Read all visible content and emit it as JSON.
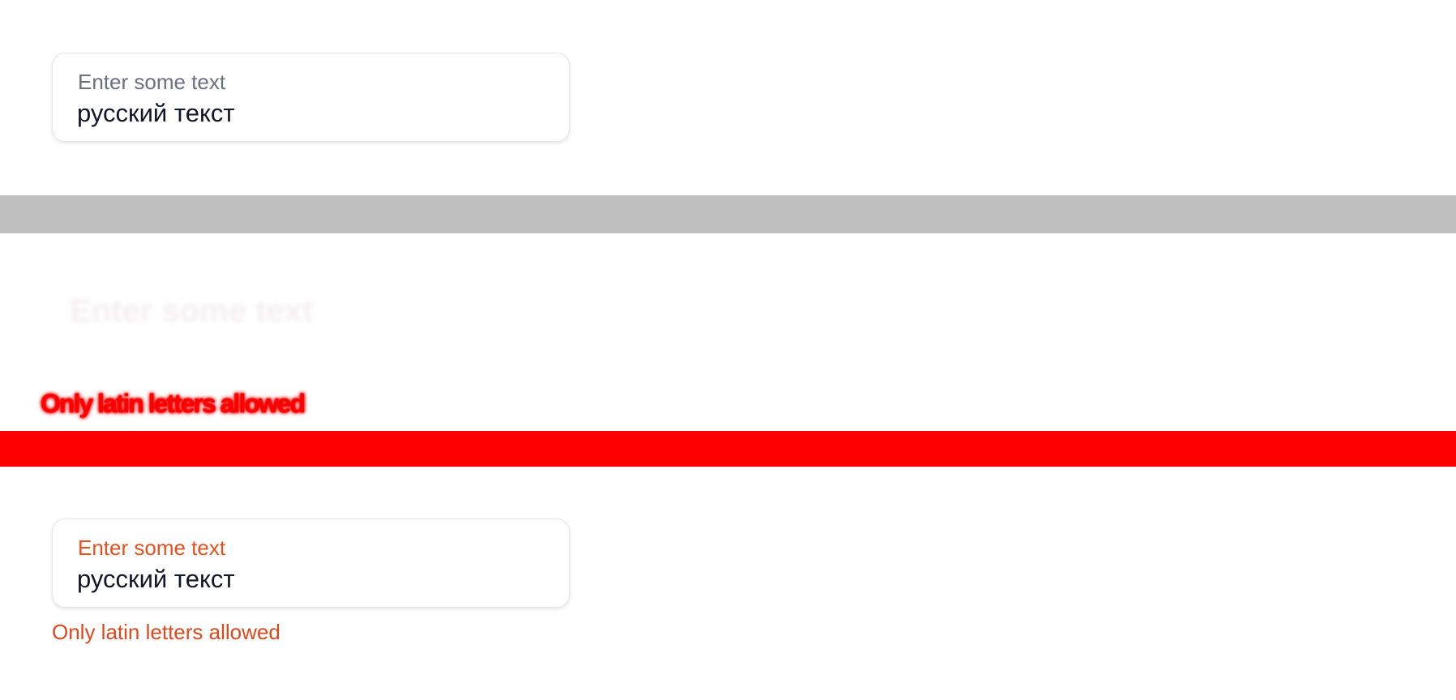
{
  "top_field": {
    "label": "Enter some text",
    "value": "русский текст"
  },
  "diff_row": {
    "ghost_label": "Enter some text",
    "error_message": "Only latin letters allowed"
  },
  "bottom_field": {
    "label": "Enter some text",
    "value": "русский текст",
    "error_message": "Only latin letters allowed"
  },
  "colors": {
    "error_accent": "#e8501f",
    "diff_band": "#ff0000",
    "separator_band": "#bfbfbf",
    "text_primary": "#111628",
    "label_muted": "#6b7080"
  }
}
